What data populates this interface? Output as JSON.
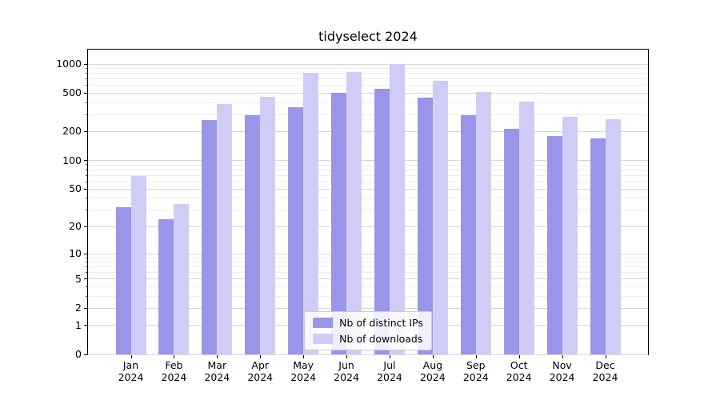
{
  "chart_data": {
    "type": "bar",
    "title": "tidyselect 2024",
    "year": "2024",
    "categories": [
      "Jan",
      "Feb",
      "Mar",
      "Apr",
      "May",
      "Jun",
      "Jul",
      "Aug",
      "Sep",
      "Oct",
      "Nov",
      "Dec"
    ],
    "series": [
      {
        "name": "Nb of distinct IPs",
        "color": "#9996ea",
        "values": [
          32,
          24,
          265,
          295,
          360,
          500,
          555,
          450,
          295,
          215,
          180,
          170
        ]
      },
      {
        "name": "Nb of downloads",
        "color": "#cfccf5",
        "values": [
          69,
          35,
          385,
          455,
          810,
          830,
          1000,
          670,
          515,
          410,
          285,
          270
        ]
      }
    ],
    "yticks": [
      0,
      1,
      2,
      5,
      10,
      20,
      50,
      100,
      200,
      500,
      1000
    ],
    "yticks_minor": [
      3,
      4,
      6,
      7,
      8,
      9,
      30,
      40,
      60,
      70,
      80,
      90,
      300,
      400,
      600,
      700,
      800,
      900
    ],
    "scale": "log1p",
    "ylim": [
      0,
      1400
    ],
    "grid": true,
    "legend_position": "lower center"
  }
}
